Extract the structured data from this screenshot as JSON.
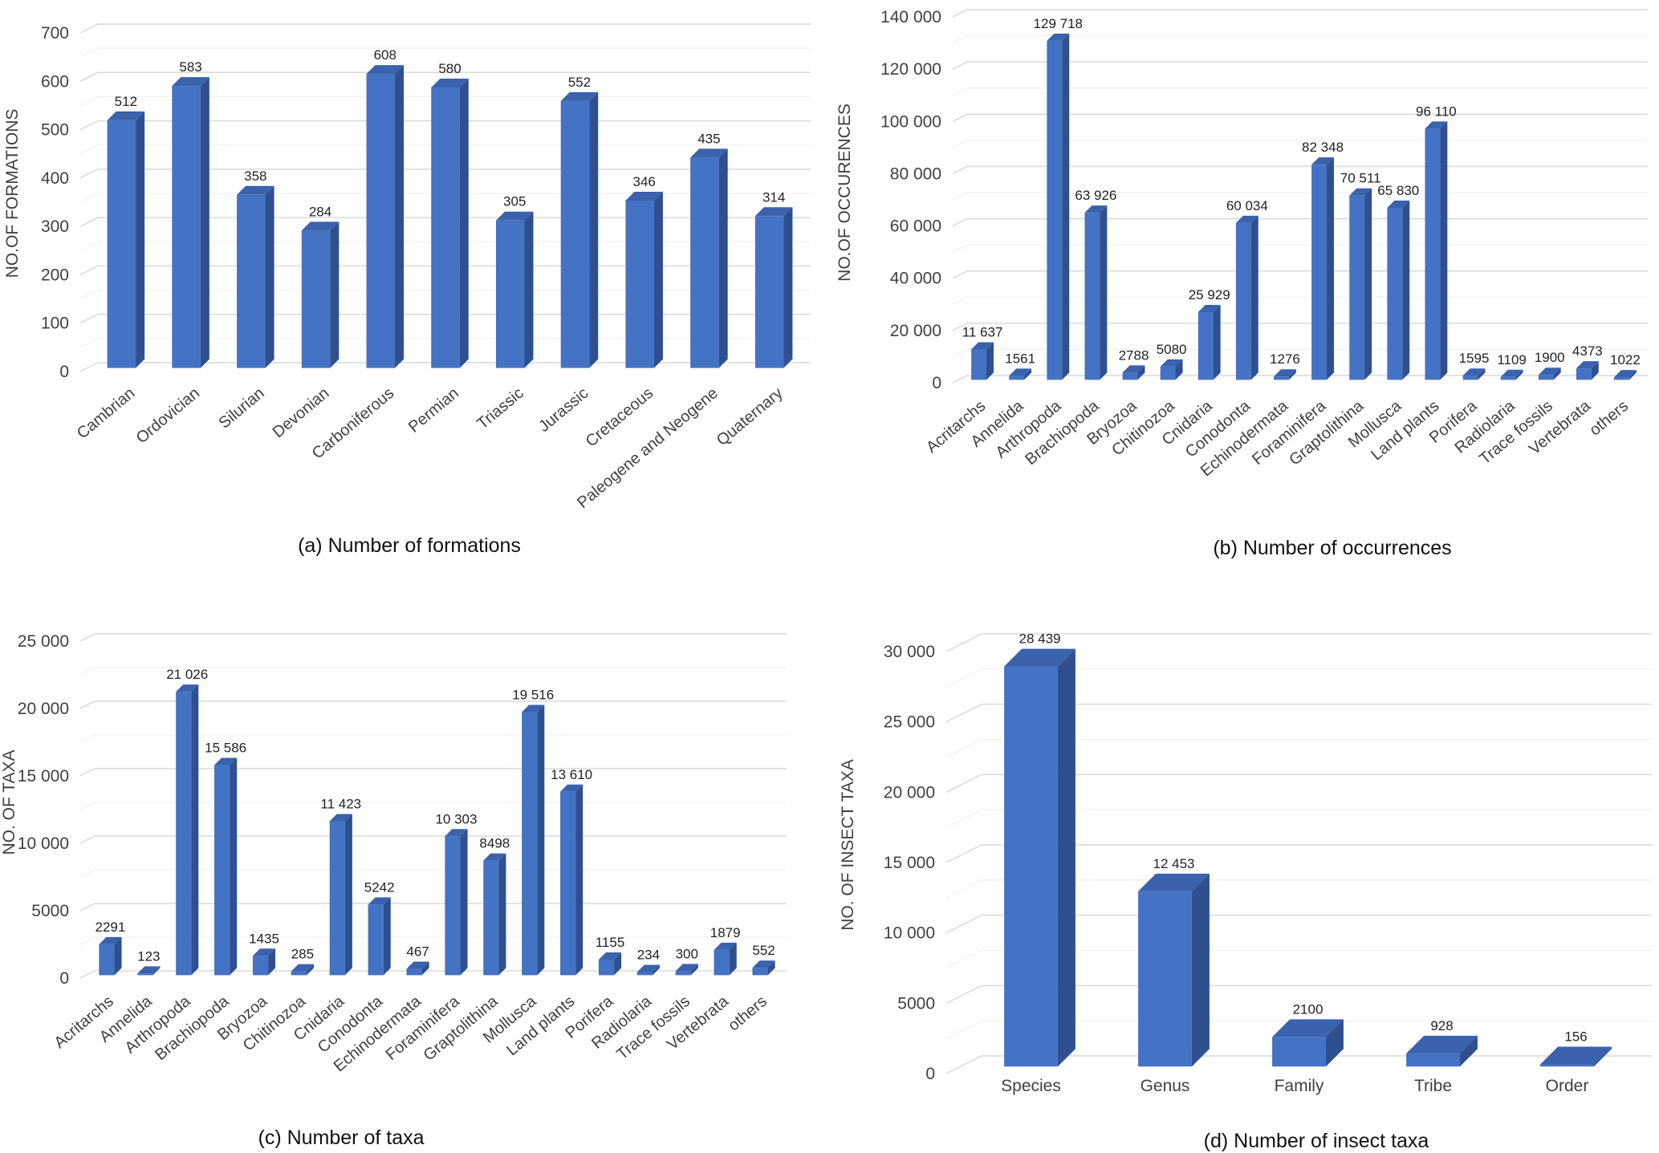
{
  "colors": {
    "bar_front": "#4472c4",
    "bar_side": "#2f4f8f",
    "bar_top": "#3a62ad",
    "grid": "#d9d9d9",
    "text": "#404040"
  },
  "chart_data": [
    {
      "type": "bar",
      "title": "(a)  Number of formations",
      "ylabel": "NO.OF  FORMATIONS",
      "xlabel": "",
      "ylim": [
        0,
        700
      ],
      "ytick_step": 100,
      "yticks": [
        "0",
        "100",
        "200",
        "300",
        "400",
        "500",
        "600",
        "700"
      ],
      "categories": [
        "Cambrian",
        "Ordovician",
        "Silurian",
        "Devonian",
        "Carboniferous",
        "Permian",
        "Triassic",
        "Jurassic",
        "Cretaceous",
        "Paleogene and Neogene",
        "Quaternary"
      ],
      "values": [
        512,
        583,
        358,
        284,
        608,
        580,
        305,
        552,
        346,
        435,
        314
      ],
      "labels": [
        "512",
        "583",
        "358",
        "284",
        "608",
        "580",
        "305",
        "552",
        "346",
        "435",
        "314"
      ],
      "grid": true,
      "style": "3d"
    },
    {
      "type": "bar",
      "title": "(b) Number of occurrences",
      "ylabel": "NO.OF OCCURENCES",
      "xlabel": "",
      "ylim": [
        0,
        140000
      ],
      "yticks": [
        "0",
        "20 000",
        "40 000",
        "60 000",
        "80 000",
        "100 000",
        "120 000",
        "140 000"
      ],
      "categories": [
        "Acritarchs",
        "Annelida",
        "Arthropoda",
        "Brachiopoda",
        "Bryozoa",
        "Chitinozoa",
        "Cnidaria",
        "Conodonta",
        "Echinodermata",
        "Foraminifera",
        "Graptolithina",
        "Mollusca",
        "Land plants",
        "Porifera",
        "Radiolaria",
        "Trace fossils",
        "Vertebrata",
        "others"
      ],
      "values": [
        11637,
        1561,
        129718,
        63926,
        2788,
        5080,
        25929,
        60034,
        1276,
        82348,
        70511,
        65830,
        96110,
        1595,
        1109,
        1900,
        4373,
        1022
      ],
      "labels": [
        "11 637",
        "1561",
        "129 718",
        "63 926",
        "2788",
        "5080",
        "25 929",
        "60 034",
        "1276",
        "82 348",
        "70 511",
        "65 830",
        "96 110",
        "1595",
        "1109",
        "1900",
        "4373",
        "1022"
      ],
      "grid": true,
      "style": "3d"
    },
    {
      "type": "bar",
      "title": "(c) Number of taxa",
      "ylabel": "NO. OF TAXA",
      "xlabel": "",
      "ylim": [
        0,
        25000
      ],
      "yticks": [
        "0",
        "5000",
        "10 000",
        "15 000",
        "20 000",
        "25 000"
      ],
      "categories": [
        "Acritarchs",
        "Annelida",
        "Arthropoda",
        "Brachiopoda",
        "Bryozoa",
        "Chitinozoa",
        "Cnidaria",
        "Conodonta",
        "Echinodermata",
        "Foraminifera",
        "Graptolithina",
        "Mollusca",
        "Land plants",
        "Porifera",
        "Radiolaria",
        "Trace fossils",
        "Vertebrata",
        "others"
      ],
      "values": [
        2291,
        123,
        21026,
        15586,
        1435,
        285,
        11423,
        5242,
        467,
        10303,
        8498,
        19516,
        13610,
        1155,
        234,
        300,
        1879,
        552
      ],
      "labels": [
        "2291",
        "123",
        "21 026",
        "15 586",
        "1435",
        "285",
        "11 423",
        "5242",
        "467",
        "10 303",
        "8498",
        "19 516",
        "13 610",
        "1155",
        "234",
        "300",
        "1879",
        "552"
      ],
      "grid": true,
      "style": "3d"
    },
    {
      "type": "bar",
      "title": "(d) Number of insect taxa",
      "ylabel": "NO. OF INSECT TAXA",
      "xlabel": "",
      "ylim": [
        0,
        30000
      ],
      "yticks": [
        "0",
        "5000",
        "10 000",
        "15 000",
        "20 000",
        "25 000",
        "30 000"
      ],
      "categories": [
        "Species",
        "Genus",
        "Family",
        "Tribe",
        "Order"
      ],
      "values": [
        28439,
        12453,
        2100,
        928,
        156
      ],
      "labels": [
        "28 439",
        "12 453",
        "2100",
        "928",
        "156"
      ],
      "grid": true,
      "style": "3d"
    }
  ]
}
